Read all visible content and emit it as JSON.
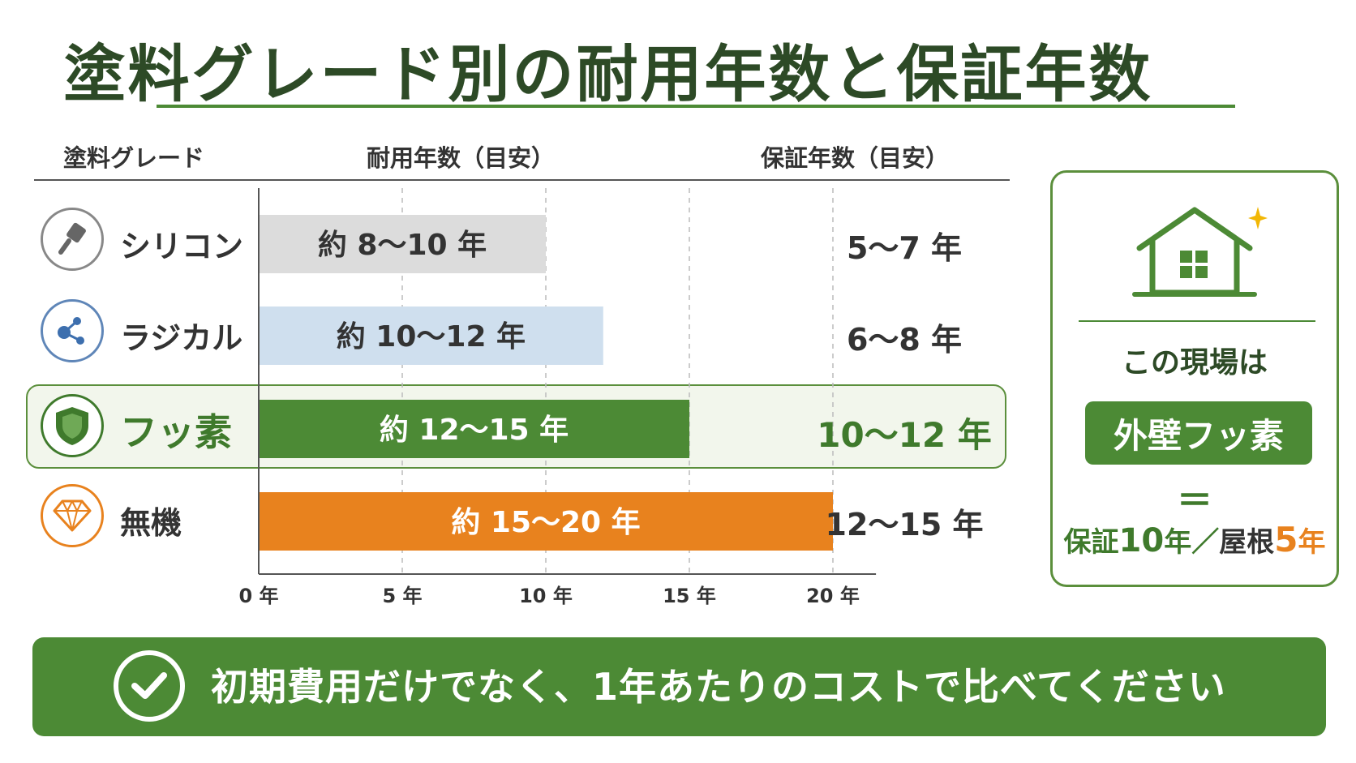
{
  "title": "塗料グレード別の耐用年数と保証年数",
  "headers": {
    "grade": "塗料グレード",
    "durability": "耐用年数（目安）",
    "warranty": "保証年数（目安）"
  },
  "colors": {
    "green": "#4c8a35",
    "dark_green": "#2d4a26",
    "orange": "#e8821e",
    "silicone_bar": "#dcdcdc",
    "radical_bar": "#cfdfee"
  },
  "chart_data": {
    "type": "bar",
    "orientation": "horizontal",
    "xlim": [
      0,
      20
    ],
    "grid": true,
    "x_ticks": [
      0,
      5,
      10,
      15,
      20
    ],
    "x_tick_labels": [
      "0 年",
      "5 年",
      "10 年",
      "15 年",
      "20 年"
    ],
    "rows": [
      {
        "grade": "シリコン",
        "icon": "brush-icon",
        "durability_min": 8,
        "durability_max": 10,
        "bar_label": "約 8～10 年",
        "warranty_label": "5～7 年",
        "color": "#dcdcdc",
        "label_color": "#333333",
        "highlight": false
      },
      {
        "grade": "ラジカル",
        "icon": "molecule-icon",
        "durability_min": 10,
        "durability_max": 12,
        "bar_label": "約 10～12 年",
        "warranty_label": "6～8 年",
        "color": "#cfdfee",
        "label_color": "#333333",
        "highlight": false
      },
      {
        "grade": "フッ素",
        "icon": "shield-icon",
        "durability_min": 12,
        "durability_max": 15,
        "bar_label": "約 12～15 年",
        "warranty_label": "10～12 年",
        "color": "#4c8a35",
        "label_color": "#ffffff",
        "highlight": true
      },
      {
        "grade": "無機",
        "icon": "diamond-icon",
        "durability_min": 15,
        "durability_max": 20,
        "bar_label": "約 15～20 年",
        "warranty_label": "12～15 年",
        "color": "#e8821e",
        "label_color": "#ffffff",
        "highlight": false
      }
    ]
  },
  "side_panel": {
    "icon": "house-icon",
    "caption": "この現場は",
    "pill": "外壁フッ素",
    "equals": "＝",
    "bottom": {
      "a": "保証",
      "b": "10",
      "c": "年／",
      "d": "屋根",
      "e": "5",
      "f": "年"
    }
  },
  "banner": {
    "icon": "check-circle-icon",
    "text": "初期費用だけでなく、1年あたりのコストで比べてください"
  }
}
